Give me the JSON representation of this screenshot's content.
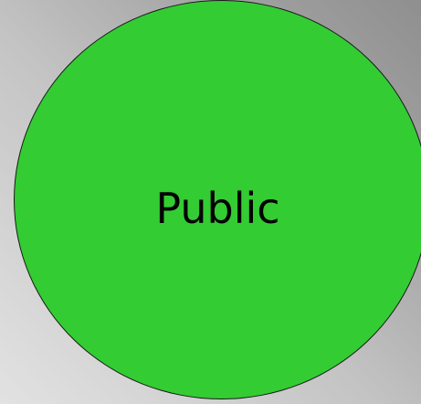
{
  "diagram": {
    "node": {
      "label": "Public",
      "fill_color": "#33cc33",
      "border_color": "#1a1a1a",
      "shape": "circle"
    },
    "background": {
      "style": "gradient",
      "colors": [
        "#e2e2e2",
        "#8f8f8f"
      ]
    }
  }
}
